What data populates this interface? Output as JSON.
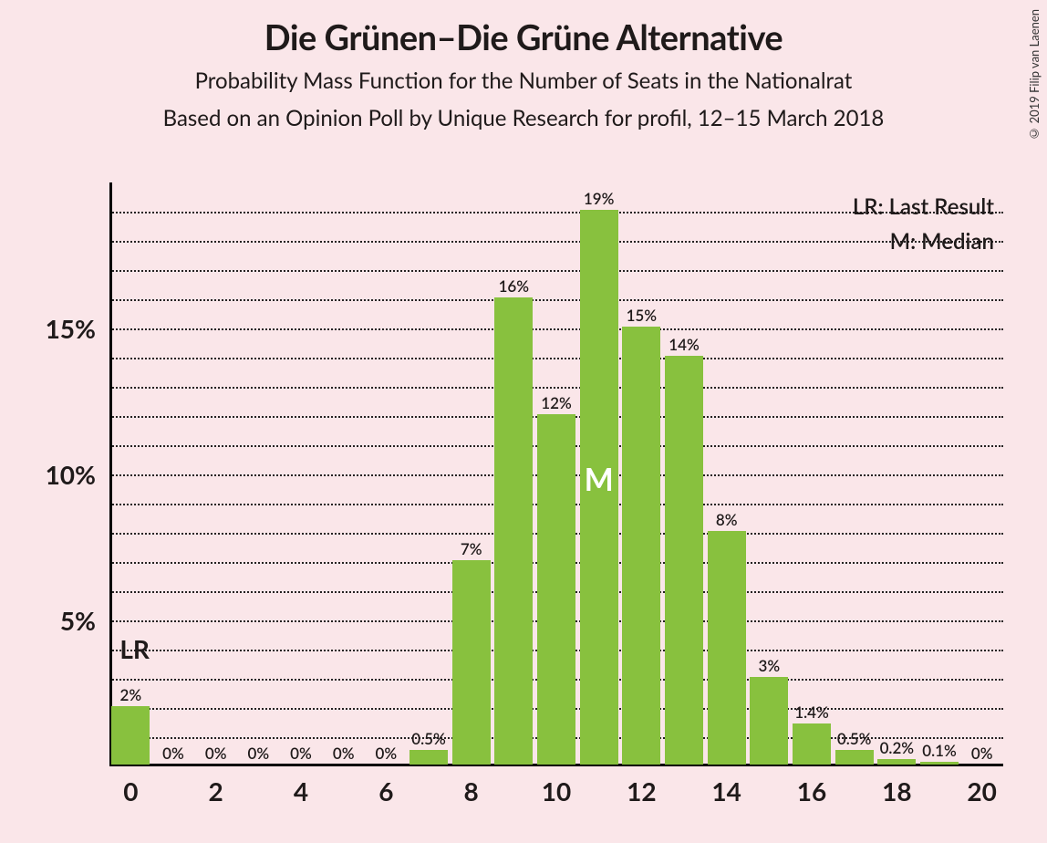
{
  "title": "Die Grünen–Die Grüne Alternative",
  "subtitle1": "Probability Mass Function for the Number of Seats in the Nationalrat",
  "subtitle2": "Based on an Opinion Poll by Unique Research for profil, 12–15 March 2018",
  "copyright": "© 2019 Filip van Laenen",
  "legend": {
    "lr": "LR: Last Result",
    "m": "M: Median"
  },
  "lr_marker": "LR",
  "median_marker": "M",
  "chart": {
    "type": "bar",
    "background_color": "#fae6e9",
    "bar_color": "#88c13e",
    "text_color": "#1f1a1a",
    "grid_color": "#000000",
    "xlim": [
      -0.5,
      20.5
    ],
    "ylim": [
      0,
      20
    ],
    "ytick_step_major": 5,
    "ytick_step_minor": 1,
    "xtick_step": 2,
    "bar_width": 0.9,
    "title_fontsize": 38,
    "subtitle_fontsize": 24,
    "axis_label_fontsize": 28,
    "bar_label_fontsize": 17,
    "categories": [
      0,
      1,
      2,
      3,
      4,
      5,
      6,
      7,
      8,
      9,
      10,
      11,
      12,
      13,
      14,
      15,
      16,
      17,
      18,
      19,
      20
    ],
    "values": [
      2,
      0,
      0,
      0,
      0,
      0,
      0,
      0.5,
      7,
      16,
      12,
      19,
      15,
      14,
      8,
      3,
      1.4,
      0.5,
      0.2,
      0.1,
      0
    ],
    "value_labels": [
      "2%",
      "0%",
      "0%",
      "0%",
      "0%",
      "0%",
      "0%",
      "0.5%",
      "7%",
      "16%",
      "12%",
      "19%",
      "15%",
      "14%",
      "8%",
      "3%",
      "1.4%",
      "0.5%",
      "0.2%",
      "0.1%",
      "0%"
    ],
    "x_tick_labels": [
      "0",
      "2",
      "4",
      "6",
      "8",
      "10",
      "12",
      "14",
      "16",
      "18",
      "20"
    ],
    "y_tick_labels": [
      "5%",
      "10%",
      "15%"
    ],
    "y_tick_values": [
      5,
      10,
      15
    ],
    "lr_x": 0,
    "median_x": 11
  }
}
